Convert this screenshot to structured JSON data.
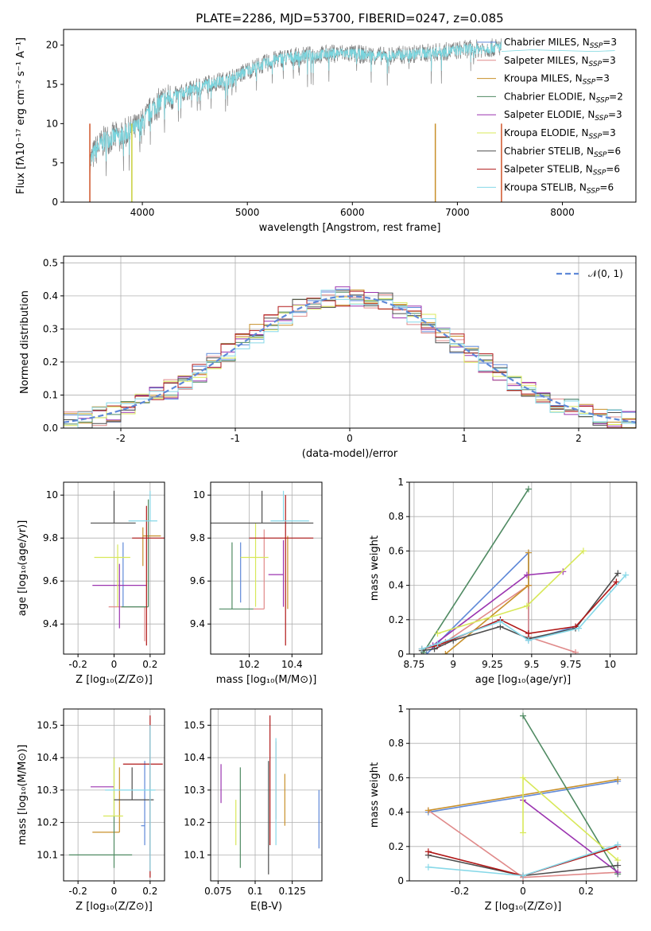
{
  "title": "PLATE=2286, MJD=53700, FIBERID=0247, z=0.085",
  "models": [
    {
      "name": "Chabrier MILES",
      "nssp": "3",
      "color": "#5f89d8"
    },
    {
      "name": "Salpeter MILES",
      "nssp": "3",
      "color": "#e08a8a"
    },
    {
      "name": "Kroupa MILES",
      "nssp": "3",
      "color": "#c8902a"
    },
    {
      "name": "Chabrier ELODIE",
      "nssp": "2",
      "color": "#4f8a62"
    },
    {
      "name": "Salpeter ELODIE",
      "nssp": "3",
      "color": "#9b34b0"
    },
    {
      "name": "Kroupa ELODIE",
      "nssp": "3",
      "color": "#d8e85a"
    },
    {
      "name": "Chabrier STELIB",
      "nssp": "6",
      "color": "#4d4d4d"
    },
    {
      "name": "Salpeter STELIB",
      "nssp": "6",
      "color": "#b01818"
    },
    {
      "name": "Kroupa STELIB",
      "nssp": "6",
      "color": "#86d8e8"
    }
  ],
  "chart_data": [
    {
      "id": "spectrum",
      "type": "line",
      "xlabel": "wavelength [Angstrom, rest frame]",
      "ylabel": "Flux [fλ10⁻¹⁷ erg cm⁻² s⁻¹ A⁻¹]",
      "xlim": [
        3250,
        8700
      ],
      "ylim": [
        0,
        22
      ],
      "xticks": [
        4000,
        5000,
        6000,
        7000,
        8000
      ],
      "yticks": [
        0,
        5,
        10,
        15,
        20
      ],
      "data_range": [
        3500,
        7420
      ],
      "data_color": "#808080",
      "model_color": "#79d6df",
      "anchors": [
        [
          3500,
          5
        ],
        [
          3550,
          6.5
        ],
        [
          3650,
          8
        ],
        [
          3800,
          8.5
        ],
        [
          3950,
          9.5
        ],
        [
          4000,
          10
        ],
        [
          4100,
          12
        ],
        [
          4200,
          13
        ],
        [
          4300,
          13.5
        ],
        [
          4400,
          14
        ],
        [
          4500,
          14.5
        ],
        [
          4600,
          15
        ],
        [
          4700,
          15.3
        ],
        [
          4800,
          15.5
        ],
        [
          4900,
          16
        ],
        [
          5000,
          16.8
        ],
        [
          5100,
          17.3
        ],
        [
          5200,
          17.8
        ],
        [
          5300,
          18.3
        ],
        [
          5500,
          18.6
        ],
        [
          5700,
          18.8
        ],
        [
          5900,
          19
        ],
        [
          6100,
          18.8
        ],
        [
          6300,
          18.6
        ],
        [
          6500,
          18.8
        ],
        [
          6700,
          19
        ],
        [
          6900,
          19.2
        ],
        [
          7100,
          19.5
        ],
        [
          7300,
          19.6
        ],
        [
          7420,
          19.8
        ]
      ],
      "model_extension": [
        [
          7420,
          19.2
        ],
        [
          7700,
          19.4
        ],
        [
          8000,
          19.3
        ],
        [
          8300,
          19.2
        ],
        [
          8500,
          19.3
        ]
      ],
      "grid": false,
      "legend": "top-right"
    },
    {
      "id": "residuals",
      "type": "histogram",
      "xlabel": "(data-model)/error",
      "ylabel": "Normed distribution",
      "xlim": [
        -2.5,
        2.5
      ],
      "ylim": [
        0,
        0.52
      ],
      "xticks": [
        -2,
        -1,
        0,
        1,
        2
      ],
      "yticks": [
        0.0,
        0.1,
        0.2,
        0.3,
        0.4,
        0.5
      ],
      "bins": [
        -2.5,
        2.5,
        40
      ],
      "reference": {
        "label": "𝒩(0, 1)",
        "mean": 0,
        "sigma": 1,
        "color": "#5f89d8"
      },
      "grid": true,
      "legend": "top-right"
    },
    {
      "id": "z_vs_age",
      "type": "scatter",
      "xlabel": "Z [log₁₀(Z/Z⊙)]",
      "ylabel": "age  [log₁₀(age/yr)]",
      "xlim": [
        -0.28,
        0.28
      ],
      "ylim": [
        9.26,
        10.06
      ],
      "xticks": [
        -0.2,
        0.0,
        0.2
      ],
      "yticks": [
        9.4,
        9.6,
        9.8,
        10.0
      ],
      "points": [
        {
          "x": 0.05,
          "y": 9.78,
          "xerr": 0.0,
          "yerr": [
            0.3,
            0.0
          ]
        },
        {
          "x": 0.17,
          "y": 9.48,
          "xerr": [
            0.2,
            0.0
          ],
          "yerr": [
            0.16,
            0.0
          ]
        },
        {
          "x": 0.16,
          "y": 9.81,
          "xerr": [
            0.0,
            0.1
          ],
          "yerr": [
            0.14,
            0.04
          ]
        },
        {
          "x": 0.19,
          "y": 9.48,
          "xerr": [
            0.15,
            0.0
          ],
          "yerr": [
            0.0,
            0.5
          ]
        },
        {
          "x": 0.03,
          "y": 9.58,
          "xerr": [
            0.15,
            0.15
          ],
          "yerr": [
            0.2,
            0.1
          ]
        },
        {
          "x": 0.02,
          "y": 9.71,
          "xerr": [
            0.13,
            0.07
          ],
          "yerr": [
            0.23,
            0.06
          ]
        },
        {
          "x": 0.0,
          "y": 9.87,
          "xerr": [
            0.13,
            0.12
          ],
          "yerr": [
            0.0,
            0.15
          ]
        },
        {
          "x": 0.18,
          "y": 9.8,
          "xerr": [
            0.08,
            0.1
          ],
          "yerr": [
            0.5,
            0.15
          ]
        },
        {
          "x": 0.2,
          "y": 9.88,
          "xerr": [
            0.12,
            0.04
          ],
          "yerr": [
            0.0,
            0.14
          ]
        }
      ],
      "grid": true
    },
    {
      "id": "mass_vs_age",
      "type": "scatter",
      "xlabel": "mass [log₁₀(M/M⊙)]",
      "ylabel": "",
      "xlim": [
        10.02,
        10.54
      ],
      "ylim": [
        9.26,
        10.06
      ],
      "xticks": [
        10.2,
        10.4
      ],
      "yticks": [
        9.4,
        9.6,
        9.8,
        10.0
      ],
      "points": [
        {
          "x": 10.16,
          "y": 9.72,
          "xerr": 0.0,
          "yerr": [
            0.22,
            0.06
          ]
        },
        {
          "x": 10.27,
          "y": 9.47,
          "xerr": [
            0.05,
            0.0
          ],
          "yerr": [
            0.0,
            0.37
          ]
        },
        {
          "x": 10.38,
          "y": 9.77,
          "xerr": [
            0.0,
            0.0
          ],
          "yerr": [
            0.3,
            0.04
          ]
        },
        {
          "x": 10.12,
          "y": 9.47,
          "xerr": [
            0.06,
            0.1
          ],
          "yerr": [
            0.0,
            0.31
          ]
        },
        {
          "x": 10.36,
          "y": 9.63,
          "xerr": [
            0.07,
            0.0
          ],
          "yerr": [
            0.15,
            0.16
          ]
        },
        {
          "x": 10.23,
          "y": 9.71,
          "xerr": [
            0.07,
            0.06
          ],
          "yerr": [
            0.23,
            0.16
          ]
        },
        {
          "x": 10.26,
          "y": 9.87,
          "xerr": [
            0.24,
            0.24
          ],
          "yerr": [
            0.0,
            0.15
          ]
        },
        {
          "x": 10.37,
          "y": 9.8,
          "xerr": [
            0.17,
            0.13
          ],
          "yerr": [
            0.5,
            0.2
          ]
        },
        {
          "x": 10.36,
          "y": 9.88,
          "xerr": [
            0.06,
            0.12
          ],
          "yerr": [
            0.0,
            0.14
          ]
        }
      ],
      "grid": true
    },
    {
      "id": "age_weights",
      "type": "line",
      "xlabel": "age  [log₁₀(age/yr)]",
      "ylabel": "mass weight",
      "xlim": [
        8.72,
        10.17
      ],
      "ylim": [
        0,
        1.0
      ],
      "xticks": [
        8.75,
        9.0,
        9.25,
        9.5,
        9.75,
        10.0
      ],
      "yticks": [
        0.0,
        0.2,
        0.4,
        0.6,
        0.8,
        1.0
      ],
      "series": [
        {
          "points": [
            [
              8.83,
              0.0
            ],
            [
              9.48,
              0.59
            ],
            [
              9.48,
              0.08
            ],
            [
              9.78,
              0.16
            ]
          ]
        },
        {
          "points": [
            [
              8.95,
              0.07
            ],
            [
              9.48,
              0.4
            ],
            [
              9.48,
              0.1
            ],
            [
              9.78,
              0.01
            ]
          ]
        },
        {
          "points": [
            [
              8.95,
              0.0
            ],
            [
              9.48,
              0.4
            ],
            [
              9.48,
              0.59
            ]
          ]
        },
        {
          "points": [
            [
              8.81,
              0.01
            ],
            [
              9.48,
              0.96
            ]
          ]
        },
        {
          "points": [
            [
              8.87,
              0.05
            ],
            [
              9.47,
              0.46
            ],
            [
              9.7,
              0.48
            ]
          ]
        },
        {
          "points": [
            [
              8.9,
              0.12
            ],
            [
              9.47,
              0.28
            ],
            [
              9.83,
              0.6
            ]
          ]
        },
        {
          "points": [
            [
              8.8,
              0.02
            ],
            [
              8.88,
              0.03
            ],
            [
              9.0,
              0.08
            ],
            [
              9.3,
              0.16
            ],
            [
              9.48,
              0.09
            ],
            [
              9.78,
              0.15
            ],
            [
              10.05,
              0.47
            ]
          ]
        },
        {
          "points": [
            [
              8.8,
              0.03
            ],
            [
              8.9,
              0.05
            ],
            [
              9.3,
              0.2
            ],
            [
              9.48,
              0.12
            ],
            [
              9.78,
              0.16
            ],
            [
              10.04,
              0.42
            ]
          ]
        },
        {
          "points": [
            [
              8.8,
              0.03
            ],
            [
              8.9,
              0.06
            ],
            [
              9.3,
              0.19
            ],
            [
              9.48,
              0.08
            ],
            [
              9.8,
              0.15
            ],
            [
              10.1,
              0.46
            ]
          ]
        }
      ],
      "grid": true
    },
    {
      "id": "z_vs_mass",
      "type": "scatter",
      "xlabel": "Z [log₁₀(Z/Z⊙)]",
      "ylabel": "mass [log₁₀(M/M⊙)]",
      "xlim": [
        -0.28,
        0.28
      ],
      "ylim": [
        10.02,
        10.55
      ],
      "xticks": [
        -0.2,
        0.0,
        0.2
      ],
      "yticks": [
        10.1,
        10.2,
        10.3,
        10.4,
        10.5
      ],
      "points": [
        {
          "x": 0.17,
          "y": 10.19,
          "xerr": [
            0.02,
            0.0
          ],
          "yerr": [
            0.06,
            0.2
          ]
        },
        {
          "x": 0.2,
          "y": 10.3,
          "xerr": [
            0.0,
            0.0
          ],
          "yerr": [
            0.2,
            0.2
          ]
        },
        {
          "x": 0.03,
          "y": 10.17,
          "xerr": [
            0.15,
            0.0
          ],
          "yerr": [
            0.0,
            0.2
          ]
        },
        {
          "x": 0.0,
          "y": 10.1,
          "xerr": [
            0.25,
            0.1
          ],
          "yerr": [
            0.04,
            0.3
          ]
        },
        {
          "x": 0.0,
          "y": 10.31,
          "xerr": [
            0.13,
            0.0
          ],
          "yerr": [
            0.0,
            0.0
          ]
        },
        {
          "x": 0.0,
          "y": 10.22,
          "xerr": [
            0.06,
            0.05
          ],
          "yerr": [
            0.0,
            0.18
          ]
        },
        {
          "x": 0.1,
          "y": 10.27,
          "xerr": [
            0.1,
            0.12
          ],
          "yerr": [
            0.0,
            0.1
          ]
        },
        {
          "x": 0.2,
          "y": 10.38,
          "xerr": [
            0.15,
            0.07
          ],
          "yerr": [
            0.35,
            0.15
          ]
        },
        {
          "x": 0.2,
          "y": 10.3,
          "xerr": [
            0.25,
            0.03
          ],
          "yerr": [
            0.25,
            0.2
          ]
        }
      ],
      "grid": true
    },
    {
      "id": "ebv_vs_mass",
      "type": "scatter",
      "xlabel": "E(B-V)",
      "ylabel": "",
      "xlim": [
        0.07,
        0.145
      ],
      "ylim": [
        10.02,
        10.55
      ],
      "xticks": [
        0.075,
        0.1,
        0.125
      ],
      "yticks": [
        10.1,
        10.2,
        10.3,
        10.4,
        10.5
      ],
      "points": [
        {
          "x": 0.143,
          "y": 10.21,
          "xerr": 0,
          "yerr": [
            0.09,
            0.09
          ]
        },
        {
          "x": 0.114,
          "y": 10.38,
          "xerr": 0,
          "yerr": [
            0.17,
            0.07
          ]
        },
        {
          "x": 0.12,
          "y": 10.25,
          "xerr": 0,
          "yerr": [
            0.06,
            0.1
          ]
        },
        {
          "x": 0.09,
          "y": 10.21,
          "xerr": 0,
          "yerr": [
            0.15,
            0.16
          ]
        },
        {
          "x": 0.077,
          "y": 10.32,
          "xerr": 0,
          "yerr": [
            0.06,
            0.06
          ]
        },
        {
          "x": 0.087,
          "y": 10.2,
          "xerr": 0,
          "yerr": [
            0.07,
            0.07
          ]
        },
        {
          "x": 0.109,
          "y": 10.29,
          "xerr": 0,
          "yerr": [
            0.25,
            0.1
          ]
        },
        {
          "x": 0.11,
          "y": 10.38,
          "xerr": 0,
          "yerr": [
            0.25,
            0.15
          ]
        },
        {
          "x": 0.114,
          "y": 10.3,
          "xerr": 0,
          "yerr": [
            0.17,
            0.16
          ]
        }
      ],
      "grid": true
    },
    {
      "id": "z_weights",
      "type": "line",
      "xlabel": "Z [log₁₀(Z/Z⊙)]",
      "ylabel": "mass weight",
      "xlim": [
        -0.36,
        0.36
      ],
      "ylim": [
        0,
        1.0
      ],
      "xticks": [
        -0.2,
        0.0,
        0.2
      ],
      "yticks": [
        0.0,
        0.2,
        0.4,
        0.6,
        0.8,
        1.0
      ],
      "series": [
        {
          "points": [
            [
              -0.3,
              0.4
            ],
            [
              0.3,
              0.58
            ]
          ]
        },
        {
          "points": [
            [
              -0.3,
              0.41
            ],
            [
              0.0,
              0.02
            ],
            [
              0.3,
              0.05
            ]
          ]
        },
        {
          "points": [
            [
              -0.3,
              0.41
            ],
            [
              0.3,
              0.59
            ]
          ]
        },
        {
          "points": [
            [
              0.0,
              0.96
            ],
            [
              0.3,
              0.04
            ]
          ]
        },
        {
          "points": [
            [
              0.0,
              0.47
            ],
            [
              0.3,
              0.05
            ]
          ]
        },
        {
          "points": [
            [
              0.0,
              0.28
            ],
            [
              0.0,
              0.6
            ],
            [
              0.3,
              0.12
            ]
          ]
        },
        {
          "points": [
            [
              -0.3,
              0.15
            ],
            [
              0.0,
              0.03
            ],
            [
              0.3,
              0.09
            ]
          ]
        },
        {
          "points": [
            [
              -0.3,
              0.17
            ],
            [
              0.0,
              0.03
            ],
            [
              0.3,
              0.2
            ]
          ]
        },
        {
          "points": [
            [
              -0.3,
              0.08
            ],
            [
              0.0,
              0.03
            ],
            [
              0.3,
              0.21
            ]
          ]
        }
      ],
      "grid": true
    }
  ]
}
